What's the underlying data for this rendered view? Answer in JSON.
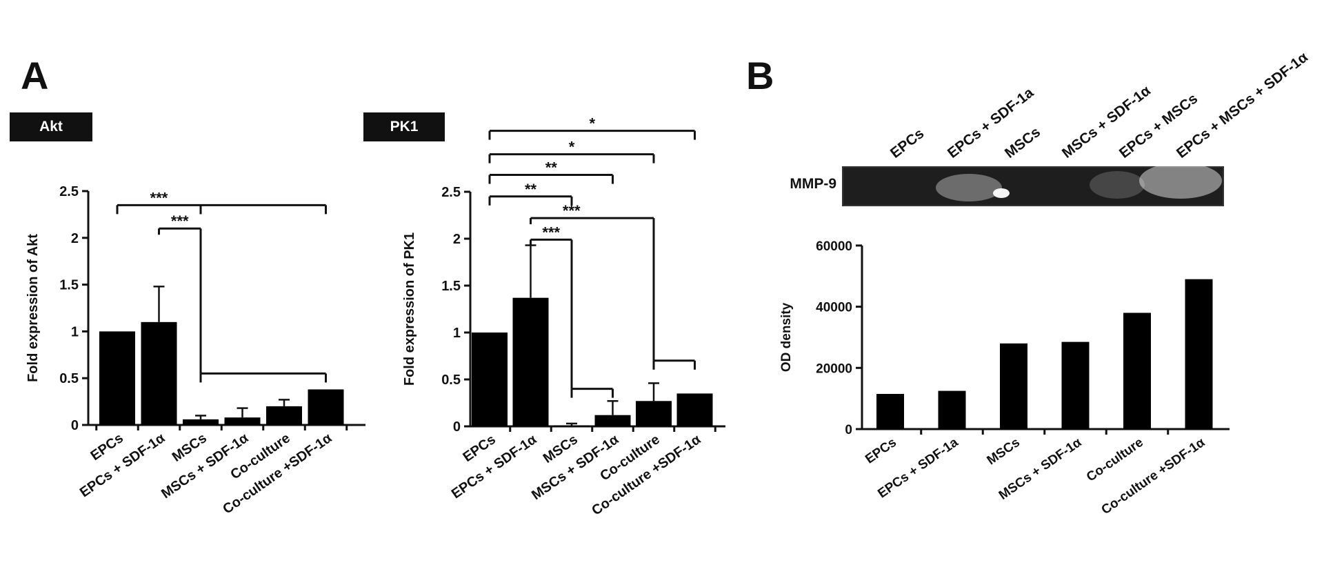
{
  "panels": {
    "a_label": "A",
    "b_label": "B",
    "akt_tag": "Akt",
    "pk1_tag": "PK1",
    "blot_label": "MMP-9",
    "blot_lanes": [
      "EPCs",
      "EPCs + SDF-1a",
      "MSCs",
      "MSCs + SDF-1α",
      "EPCs + MSCs",
      "EPCs + MSCs + SDF-1α"
    ]
  },
  "colors": {
    "bar": "#000000",
    "blot_background": "#1e1e1e",
    "axis": "#111111"
  },
  "chart_data": [
    {
      "id": "akt",
      "type": "bar",
      "categories": [
        "EPCs",
        "EPCs + SDF-1α",
        "MSCs",
        "MSCs + SDF-1α",
        "Co-culture",
        "Co-culture +SDF-1α"
      ],
      "values": [
        1.0,
        1.1,
        0.06,
        0.08,
        0.2,
        0.38
      ],
      "errors": [
        0.01,
        0.38,
        0.04,
        0.1,
        0.07,
        0.01
      ],
      "ylabel": "Fold expression of Akt",
      "ylim": [
        0,
        2.5
      ],
      "yticks": [
        0,
        0.5,
        1,
        1.5,
        2,
        2.5
      ],
      "ytick_labels": [
        "0",
        "0.5",
        "1",
        "1.5",
        "2",
        "2.5"
      ],
      "significance": [
        {
          "from": 0,
          "to": 2,
          "label": "***",
          "type": "bracket",
          "level": 2.35
        },
        {
          "from": 2,
          "to": 5,
          "label": "",
          "type": "bracket",
          "level": 2.35
        },
        {
          "from": 1,
          "to": 2,
          "label": "***",
          "type": "drop",
          "level": 2.1,
          "low": 0.55
        },
        {
          "from": 2,
          "to": 5,
          "label": "",
          "type": "bracket",
          "level": 0.55
        }
      ]
    },
    {
      "id": "pk1",
      "type": "bar",
      "categories": [
        "EPCs",
        "EPCs + SDF-1α",
        "MSCs",
        "MSCs + SDF-1α",
        "Co-culture",
        "Co-culture +SDF-1α"
      ],
      "values": [
        1.0,
        1.37,
        0.01,
        0.12,
        0.27,
        0.35
      ],
      "errors": [
        0.01,
        0.56,
        0.02,
        0.15,
        0.19,
        0.01
      ],
      "ylabel": "Fold expression of PK1",
      "ylim": [
        0,
        2.5
      ],
      "yticks": [
        0,
        0.5,
        1,
        1.5,
        2,
        2.5
      ],
      "ytick_labels": [
        "0",
        "0.5",
        "1",
        "1.5",
        "2",
        "2.5"
      ],
      "significance": [
        {
          "from": 0,
          "to": 5,
          "label": "*",
          "type": "bracket",
          "level": 3.15
        },
        {
          "from": 0,
          "to": 4,
          "label": "*",
          "type": "bracket",
          "level": 2.9
        },
        {
          "from": 0,
          "to": 3,
          "label": "**",
          "type": "bracket",
          "level": 2.68
        },
        {
          "from": 0,
          "to": 2,
          "label": "**",
          "type": "bracket",
          "level": 2.45
        },
        {
          "from": 1,
          "to": 4,
          "label": "***",
          "type": "drop",
          "level": 2.22,
          "low": 0.7
        },
        {
          "from": 1,
          "to": 2,
          "label": "***",
          "type": "drop",
          "level": 1.99,
          "low": 0.4
        },
        {
          "from": 2,
          "to": 3,
          "label": "",
          "type": "bracket",
          "level": 0.4
        },
        {
          "from": 4,
          "to": 5,
          "label": "",
          "type": "bracket",
          "level": 0.7
        }
      ]
    },
    {
      "id": "od",
      "type": "bar",
      "categories": [
        "EPCs",
        "EPCs + SDF-1a",
        "MSCs",
        "MSCs + SDF-1α",
        "Co-culture",
        "Co-culture +SDF-1α"
      ],
      "values": [
        11500,
        12500,
        28000,
        28500,
        38000,
        49000
      ],
      "ylabel": "OD density",
      "ylim": [
        0,
        60000
      ],
      "yticks": [
        0,
        20000,
        40000,
        60000
      ],
      "ytick_labels": [
        "0",
        "20000",
        "40000",
        "60000"
      ]
    }
  ]
}
